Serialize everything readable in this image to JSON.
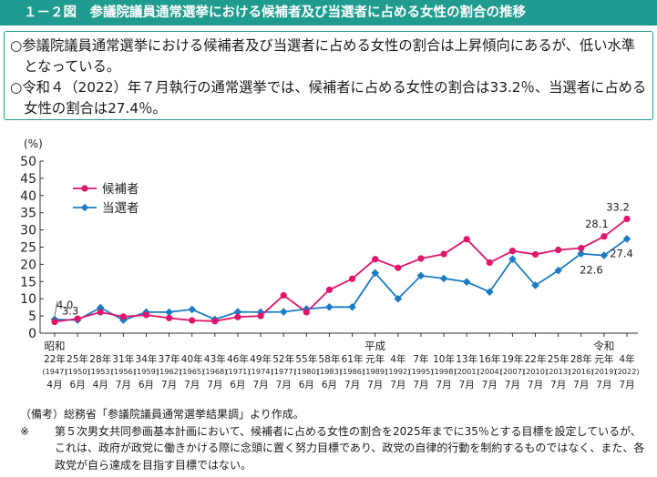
{
  "header": {
    "title": "１－２図　参議院議員通常選挙における候補者及び当選者に占める女性の割合の推移"
  },
  "summary": [
    "○参議院議員通常選挙における候補者及び当選者に占める女性の割合は上昇傾向にあるが、低い水準となっている。",
    "○令和４（2022）年７月執行の通常選挙では、候補者に占める女性の割合は33.2％、当選者に占める女性の割合は27.4％。"
  ],
  "notes": {
    "source": "（備考）総務省「参議院議員通常選挙結果調」より作成。",
    "footnote_mark": "※",
    "footnote": "第５次男女共同参画基本計画において、候補者に占める女性の割合を2025年までに35％とする目標を設定しているが、これは、政府が政党に働きかける際に念頭に置く努力目標であり、政党の自律的行動を制約するものではなく、また、各政党が自ら達成を目指す目標ではない。"
  },
  "chart_data": {
    "type": "line",
    "ylabel": "(%)",
    "ylim": [
      0,
      50
    ],
    "yticks": [
      0,
      5,
      10,
      15,
      20,
      25,
      30,
      35,
      40,
      45,
      50
    ],
    "grid": false,
    "legend_position": "top-left",
    "eras": [
      {
        "label": "昭和",
        "index": 0
      },
      {
        "label": "平成",
        "index": 14
      },
      {
        "label": "令和",
        "index": 24
      }
    ],
    "categories": [
      {
        "year": "22年",
        "ad": "(1947)",
        "month": "4月"
      },
      {
        "year": "25年",
        "ad": "(1950)",
        "month": "6月"
      },
      {
        "year": "28年",
        "ad": "(1953)",
        "month": "4月"
      },
      {
        "year": "31年",
        "ad": "(1956)",
        "month": "7月"
      },
      {
        "year": "34年",
        "ad": "(1959)",
        "month": "6月"
      },
      {
        "year": "37年",
        "ad": "(1962)",
        "month": "7月"
      },
      {
        "year": "40年",
        "ad": "(1965)",
        "month": "7月"
      },
      {
        "year": "43年",
        "ad": "(1968)",
        "month": "7月"
      },
      {
        "year": "46年",
        "ad": "(1971)",
        "month": "6月"
      },
      {
        "year": "49年",
        "ad": "(1974)",
        "month": "7月"
      },
      {
        "year": "52年",
        "ad": "(1977)",
        "month": "7月"
      },
      {
        "year": "55年",
        "ad": "(1980)",
        "month": "6月"
      },
      {
        "year": "58年",
        "ad": "(1983)",
        "month": "6月"
      },
      {
        "year": "61年",
        "ad": "(1986)",
        "month": "7月"
      },
      {
        "year": "元年",
        "ad": "(1989)",
        "month": "7月"
      },
      {
        "year": "4年",
        "ad": "(1992)",
        "month": "7月"
      },
      {
        "year": "7年",
        "ad": "(1995)",
        "month": "7月"
      },
      {
        "year": "10年",
        "ad": "(1998)",
        "month": "7月"
      },
      {
        "year": "13年",
        "ad": "(2001)",
        "month": "7月"
      },
      {
        "year": "16年",
        "ad": "(2004)",
        "month": "7月"
      },
      {
        "year": "19年",
        "ad": "(2007)",
        "month": "7月"
      },
      {
        "year": "22年",
        "ad": "(2010)",
        "month": "7月"
      },
      {
        "year": "25年",
        "ad": "(2013)",
        "month": "7月"
      },
      {
        "year": "28年",
        "ad": "(2016)",
        "month": "7月"
      },
      {
        "year": "元年",
        "ad": "(2019)",
        "month": "7月"
      },
      {
        "year": "4年",
        "ad": "(2022)",
        "month": "7月"
      }
    ],
    "series": [
      {
        "name": "候補者",
        "color": "#e0156b",
        "marker": "circle",
        "values": [
          3.3,
          4.2,
          6.1,
          4.8,
          5.3,
          4.4,
          3.7,
          3.5,
          4.7,
          5.0,
          11.0,
          6.1,
          12.6,
          15.8,
          21.5,
          19.0,
          21.7,
          23.0,
          27.3,
          20.5,
          23.9,
          22.9,
          24.2,
          24.7,
          28.1,
          33.2
        ]
      },
      {
        "name": "当選者",
        "color": "#1a7cc4",
        "marker": "diamond",
        "values": [
          4.0,
          3.8,
          7.4,
          3.8,
          6.1,
          6.1,
          6.9,
          4.0,
          6.2,
          6.1,
          6.2,
          7.0,
          7.6,
          7.6,
          17.5,
          10.0,
          16.7,
          15.9,
          14.9,
          12.0,
          21.5,
          13.9,
          18.2,
          23.1,
          22.6,
          27.4
        ]
      }
    ],
    "annotations": [
      {
        "series": "当選者",
        "index": 0,
        "text": "4.0"
      },
      {
        "series": "候補者",
        "index": 0,
        "text": "3.3"
      },
      {
        "series": "候補者",
        "index": 24,
        "text": "28.1"
      },
      {
        "series": "候補者",
        "index": 25,
        "text": "33.2"
      },
      {
        "series": "当選者",
        "index": 24,
        "text": "22.6"
      },
      {
        "series": "当選者",
        "index": 25,
        "text": "27.4"
      }
    ]
  }
}
